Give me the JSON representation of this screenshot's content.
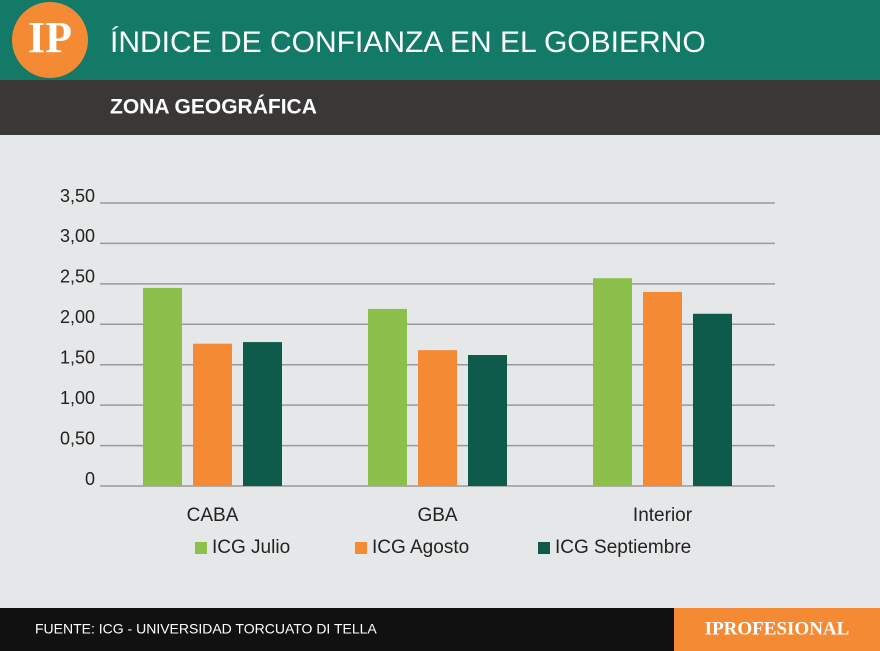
{
  "chart_data": {
    "type": "bar",
    "logo": "IP",
    "title": "ÍNDICE DE CONFIANZA EN EL GOBIERNO",
    "subtitle": "ZONA GEOGRÁFICA",
    "source": "FUENTE: ICG - UNIVERSIDAD TORCUATO DI TELLA",
    "brand": "IPROFESIONAL",
    "categories": [
      "CABA",
      "GBA",
      "Interior"
    ],
    "series": [
      {
        "name": "ICG Julio",
        "color": "#8cc04b",
        "values": [
          2.45,
          2.19,
          2.57
        ]
      },
      {
        "name": "ICG Agosto",
        "color": "#f58a35",
        "values": [
          1.76,
          1.68,
          2.4
        ]
      },
      {
        "name": "ICG Septiembre",
        "color": "#0e5b4c",
        "values": [
          1.78,
          1.62,
          2.13
        ]
      }
    ],
    "ylim": [
      0,
      3.5
    ],
    "yticks": [
      0,
      {
        "value": 0.5,
        "label": "0,50"
      },
      {
        "value": 1,
        "label": "1,00"
      },
      {
        "value": 1.5,
        "label": "1,50"
      },
      {
        "value": 2,
        "label": "2,00"
      },
      {
        "value": 2.5,
        "label": "2,50"
      },
      {
        "value": 3,
        "label": "3,00"
      },
      {
        "value": 3.5,
        "label": "3,50"
      }
    ],
    "grid": true
  }
}
